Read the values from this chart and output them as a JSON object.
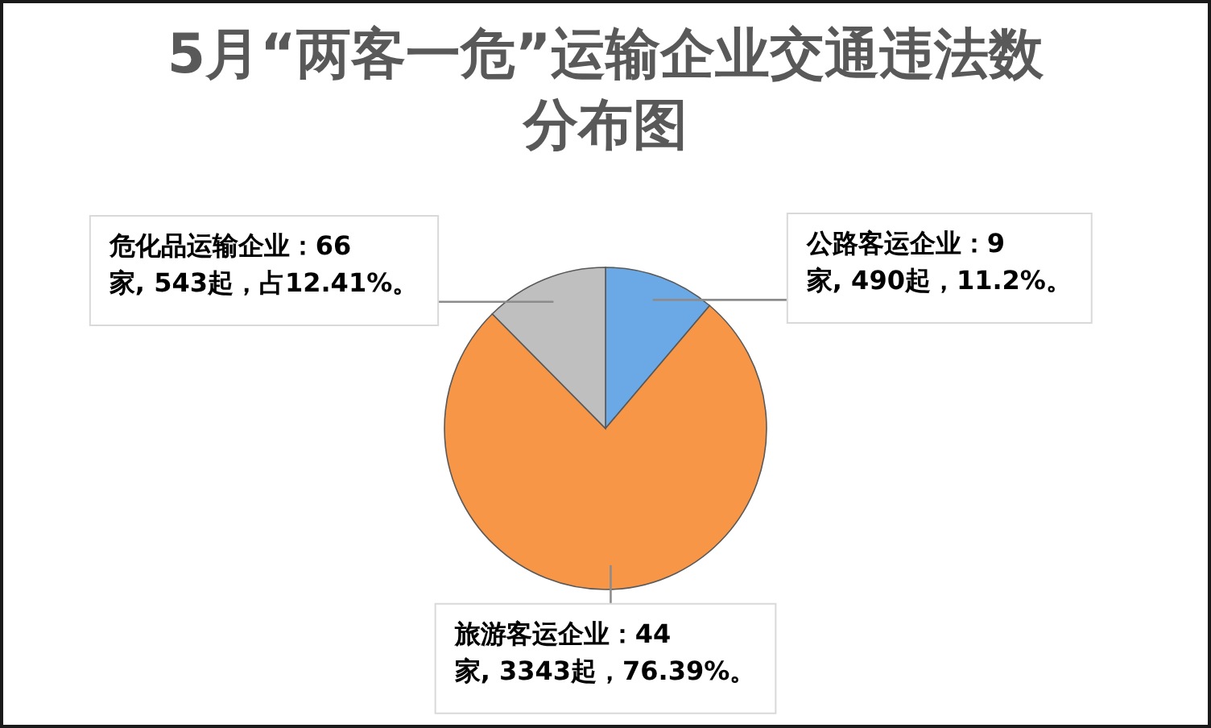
{
  "chart_data": {
    "type": "pie",
    "title": "5月“两客一危”运输企业交通违法数分布图",
    "categories": [
      "公路客运企业：9家, 490起，11.2%。",
      "旅游客运企业：44家, 3343起，76.39%。",
      "危化品运输企业：66家, 543起，占12.41%。"
    ],
    "values": [
      490,
      3343,
      543
    ],
    "colors": [
      "#6aa9e6",
      "#f79646",
      "#bfbfbf"
    ]
  }
}
